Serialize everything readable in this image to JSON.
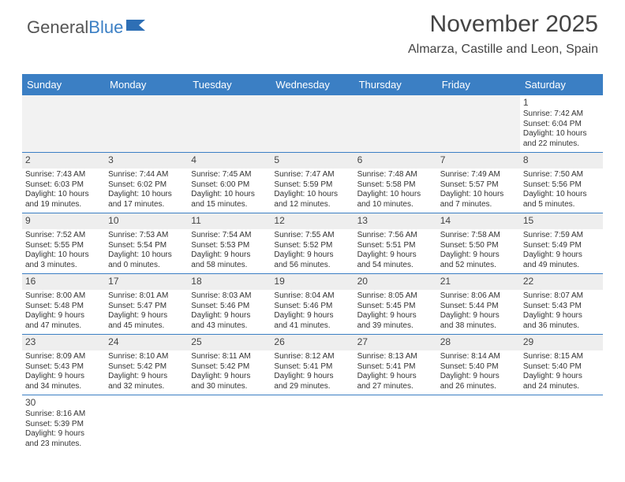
{
  "logo": {
    "part1": "General",
    "part2": "Blue",
    "flag_color": "#2e6fb5"
  },
  "title": "November 2025",
  "subtitle": "Almarza, Castille and Leon, Spain",
  "header_bg": "#3b7fc4",
  "row_border": "#3b7fc4",
  "blank_bg": "#f2f2f2",
  "daynum_strip_bg": "#eeeeee",
  "title_fontsize": 30,
  "subtitle_fontsize": 16,
  "header_fontsize": 13,
  "cell_fontsize": 10,
  "day_headers": [
    "Sunday",
    "Monday",
    "Tuesday",
    "Wednesday",
    "Thursday",
    "Friday",
    "Saturday"
  ],
  "weeks": [
    [
      {
        "blank": true
      },
      {
        "blank": true
      },
      {
        "blank": true
      },
      {
        "blank": true
      },
      {
        "blank": true
      },
      {
        "blank": true
      },
      {
        "n": "1",
        "sunrise": "Sunrise: 7:42 AM",
        "sunset": "Sunset: 6:04 PM",
        "d1": "Daylight: 10 hours",
        "d2": "and 22 minutes."
      }
    ],
    [
      {
        "n": "2",
        "sunrise": "Sunrise: 7:43 AM",
        "sunset": "Sunset: 6:03 PM",
        "d1": "Daylight: 10 hours",
        "d2": "and 19 minutes."
      },
      {
        "n": "3",
        "sunrise": "Sunrise: 7:44 AM",
        "sunset": "Sunset: 6:02 PM",
        "d1": "Daylight: 10 hours",
        "d2": "and 17 minutes."
      },
      {
        "n": "4",
        "sunrise": "Sunrise: 7:45 AM",
        "sunset": "Sunset: 6:00 PM",
        "d1": "Daylight: 10 hours",
        "d2": "and 15 minutes."
      },
      {
        "n": "5",
        "sunrise": "Sunrise: 7:47 AM",
        "sunset": "Sunset: 5:59 PM",
        "d1": "Daylight: 10 hours",
        "d2": "and 12 minutes."
      },
      {
        "n": "6",
        "sunrise": "Sunrise: 7:48 AM",
        "sunset": "Sunset: 5:58 PM",
        "d1": "Daylight: 10 hours",
        "d2": "and 10 minutes."
      },
      {
        "n": "7",
        "sunrise": "Sunrise: 7:49 AM",
        "sunset": "Sunset: 5:57 PM",
        "d1": "Daylight: 10 hours",
        "d2": "and 7 minutes."
      },
      {
        "n": "8",
        "sunrise": "Sunrise: 7:50 AM",
        "sunset": "Sunset: 5:56 PM",
        "d1": "Daylight: 10 hours",
        "d2": "and 5 minutes."
      }
    ],
    [
      {
        "n": "9",
        "sunrise": "Sunrise: 7:52 AM",
        "sunset": "Sunset: 5:55 PM",
        "d1": "Daylight: 10 hours",
        "d2": "and 3 minutes."
      },
      {
        "n": "10",
        "sunrise": "Sunrise: 7:53 AM",
        "sunset": "Sunset: 5:54 PM",
        "d1": "Daylight: 10 hours",
        "d2": "and 0 minutes."
      },
      {
        "n": "11",
        "sunrise": "Sunrise: 7:54 AM",
        "sunset": "Sunset: 5:53 PM",
        "d1": "Daylight: 9 hours",
        "d2": "and 58 minutes."
      },
      {
        "n": "12",
        "sunrise": "Sunrise: 7:55 AM",
        "sunset": "Sunset: 5:52 PM",
        "d1": "Daylight: 9 hours",
        "d2": "and 56 minutes."
      },
      {
        "n": "13",
        "sunrise": "Sunrise: 7:56 AM",
        "sunset": "Sunset: 5:51 PM",
        "d1": "Daylight: 9 hours",
        "d2": "and 54 minutes."
      },
      {
        "n": "14",
        "sunrise": "Sunrise: 7:58 AM",
        "sunset": "Sunset: 5:50 PM",
        "d1": "Daylight: 9 hours",
        "d2": "and 52 minutes."
      },
      {
        "n": "15",
        "sunrise": "Sunrise: 7:59 AM",
        "sunset": "Sunset: 5:49 PM",
        "d1": "Daylight: 9 hours",
        "d2": "and 49 minutes."
      }
    ],
    [
      {
        "n": "16",
        "sunrise": "Sunrise: 8:00 AM",
        "sunset": "Sunset: 5:48 PM",
        "d1": "Daylight: 9 hours",
        "d2": "and 47 minutes."
      },
      {
        "n": "17",
        "sunrise": "Sunrise: 8:01 AM",
        "sunset": "Sunset: 5:47 PM",
        "d1": "Daylight: 9 hours",
        "d2": "and 45 minutes."
      },
      {
        "n": "18",
        "sunrise": "Sunrise: 8:03 AM",
        "sunset": "Sunset: 5:46 PM",
        "d1": "Daylight: 9 hours",
        "d2": "and 43 minutes."
      },
      {
        "n": "19",
        "sunrise": "Sunrise: 8:04 AM",
        "sunset": "Sunset: 5:46 PM",
        "d1": "Daylight: 9 hours",
        "d2": "and 41 minutes."
      },
      {
        "n": "20",
        "sunrise": "Sunrise: 8:05 AM",
        "sunset": "Sunset: 5:45 PM",
        "d1": "Daylight: 9 hours",
        "d2": "and 39 minutes."
      },
      {
        "n": "21",
        "sunrise": "Sunrise: 8:06 AM",
        "sunset": "Sunset: 5:44 PM",
        "d1": "Daylight: 9 hours",
        "d2": "and 38 minutes."
      },
      {
        "n": "22",
        "sunrise": "Sunrise: 8:07 AM",
        "sunset": "Sunset: 5:43 PM",
        "d1": "Daylight: 9 hours",
        "d2": "and 36 minutes."
      }
    ],
    [
      {
        "n": "23",
        "sunrise": "Sunrise: 8:09 AM",
        "sunset": "Sunset: 5:43 PM",
        "d1": "Daylight: 9 hours",
        "d2": "and 34 minutes."
      },
      {
        "n": "24",
        "sunrise": "Sunrise: 8:10 AM",
        "sunset": "Sunset: 5:42 PM",
        "d1": "Daylight: 9 hours",
        "d2": "and 32 minutes."
      },
      {
        "n": "25",
        "sunrise": "Sunrise: 8:11 AM",
        "sunset": "Sunset: 5:42 PM",
        "d1": "Daylight: 9 hours",
        "d2": "and 30 minutes."
      },
      {
        "n": "26",
        "sunrise": "Sunrise: 8:12 AM",
        "sunset": "Sunset: 5:41 PM",
        "d1": "Daylight: 9 hours",
        "d2": "and 29 minutes."
      },
      {
        "n": "27",
        "sunrise": "Sunrise: 8:13 AM",
        "sunset": "Sunset: 5:41 PM",
        "d1": "Daylight: 9 hours",
        "d2": "and 27 minutes."
      },
      {
        "n": "28",
        "sunrise": "Sunrise: 8:14 AM",
        "sunset": "Sunset: 5:40 PM",
        "d1": "Daylight: 9 hours",
        "d2": "and 26 minutes."
      },
      {
        "n": "29",
        "sunrise": "Sunrise: 8:15 AM",
        "sunset": "Sunset: 5:40 PM",
        "d1": "Daylight: 9 hours",
        "d2": "and 24 minutes."
      }
    ],
    [
      {
        "n": "30",
        "sunrise": "Sunrise: 8:16 AM",
        "sunset": "Sunset: 5:39 PM",
        "d1": "Daylight: 9 hours",
        "d2": "and 23 minutes."
      },
      {
        "blank": true
      },
      {
        "blank": true
      },
      {
        "blank": true
      },
      {
        "blank": true
      },
      {
        "blank": true
      },
      {
        "blank": true
      }
    ]
  ]
}
